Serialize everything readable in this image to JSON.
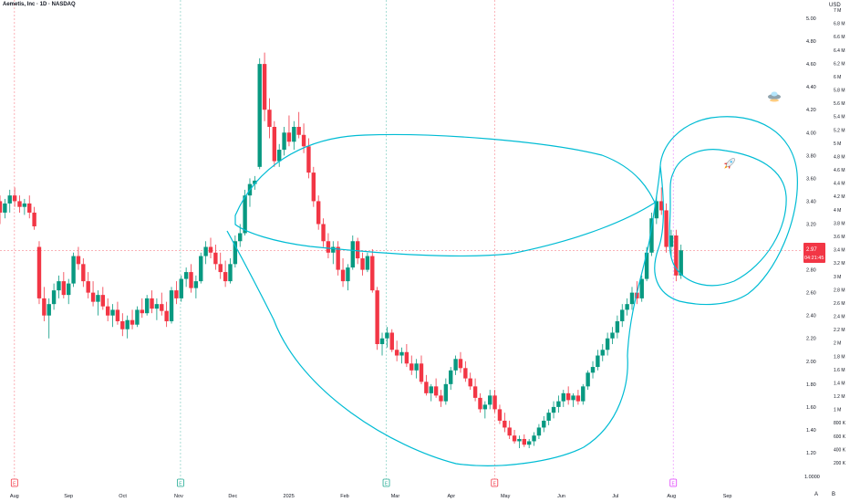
{
  "header": {
    "symbol_label": "Aemetis, Inc · 1D · NASDAQ",
    "currency": "USD"
  },
  "price_badge": {
    "price": "2.97",
    "countdown": "04:21:45",
    "color": "#f23645"
  },
  "bottom_corner": {
    "a_label": "A",
    "b_label": "B"
  },
  "chart_data": {
    "type": "candlestick",
    "price_axis": {
      "ticks": [
        "5.00",
        "4.80",
        "4.60",
        "4.40",
        "4.20",
        "4.00",
        "3.80",
        "3.60",
        "3.40",
        "3.20",
        "3.00",
        "2.80",
        "2.60",
        "2.40",
        "2.20",
        "2.00",
        "1.80",
        "1.60",
        "1.40",
        "1.20"
      ],
      "bottom_tick": "1.0000",
      "range": [
        1.0,
        5.1
      ]
    },
    "volume_axis": {
      "ticks": [
        "7 M",
        "6.8 M",
        "6.6 M",
        "6.4 M",
        "6.2 M",
        "6 M",
        "5.8 M",
        "5.6 M",
        "5.4 M",
        "5.2 M",
        "5 M",
        "4.8 M",
        "4.6 M",
        "4.4 M",
        "4.2 M",
        "4 M",
        "3.8 M",
        "3.6 M",
        "3.4 M",
        "3.2 M",
        "3 M",
        "2.8 M",
        "2.6 M",
        "2.4 M",
        "2.2 M",
        "2 M",
        "1.8 M",
        "1.6 M",
        "1.4 M",
        "1.2 M",
        "1 M",
        "800 K",
        "600 K",
        "400 K",
        "200 K"
      ]
    },
    "time_axis": {
      "labels": [
        {
          "label": "Aug",
          "day": 0
        },
        {
          "label": "Sep",
          "day": 30
        },
        {
          "label": "Oct",
          "day": 60
        },
        {
          "label": "Nov",
          "day": 91
        },
        {
          "label": "Dec",
          "day": 121
        },
        {
          "label": "2025",
          "day": 152
        },
        {
          "label": "Feb",
          "day": 183
        },
        {
          "label": "Mar",
          "day": 211
        },
        {
          "label": "Apr",
          "day": 242
        },
        {
          "label": "May",
          "day": 272
        },
        {
          "label": "Jun",
          "day": 303
        },
        {
          "label": "Jul",
          "day": 333
        },
        {
          "label": "Aug",
          "day": 364
        },
        {
          "label": "Sep",
          "day": 395
        }
      ],
      "range_days": [
        -8,
        424
      ]
    },
    "event_markers": [
      {
        "day": 0,
        "label": "E",
        "color": "#f23645"
      },
      {
        "day": 92,
        "label": "E",
        "color": "#22ab94"
      },
      {
        "day": 206,
        "label": "E",
        "color": "#22ab94"
      },
      {
        "day": 266,
        "label": "E",
        "color": "#f23645"
      },
      {
        "day": 365,
        "label": "E",
        "color": "#e040fb"
      }
    ],
    "up_color": "#089981",
    "down_color": "#f23645",
    "current_price": 2.97,
    "start_day": -8,
    "candles": [
      [
        3.4,
        3.45,
        3.2,
        3.3
      ],
      [
        3.3,
        3.42,
        3.25,
        3.38
      ],
      [
        3.38,
        3.5,
        3.3,
        3.45
      ],
      [
        3.45,
        3.52,
        3.35,
        3.4
      ],
      [
        3.4,
        3.45,
        3.3,
        3.35
      ],
      [
        3.35,
        3.42,
        3.28,
        3.38
      ],
      [
        3.38,
        3.45,
        3.25,
        3.3
      ],
      [
        3.3,
        3.35,
        3.15,
        3.18
      ],
      [
        3.0,
        3.05,
        2.5,
        2.55
      ],
      [
        2.55,
        2.65,
        2.35,
        2.4
      ],
      [
        2.4,
        2.55,
        2.2,
        2.5
      ],
      [
        2.5,
        2.68,
        2.45,
        2.62
      ],
      [
        2.62,
        2.75,
        2.55,
        2.7
      ],
      [
        2.7,
        2.78,
        2.55,
        2.58
      ],
      [
        2.58,
        2.72,
        2.5,
        2.68
      ],
      [
        2.68,
        2.95,
        2.65,
        2.92
      ],
      [
        2.92,
        3.0,
        2.8,
        2.85
      ],
      [
        2.85,
        2.9,
        2.65,
        2.7
      ],
      [
        2.7,
        2.78,
        2.55,
        2.6
      ],
      [
        2.6,
        2.7,
        2.48,
        2.52
      ],
      [
        2.52,
        2.62,
        2.4,
        2.58
      ],
      [
        2.58,
        2.65,
        2.45,
        2.48
      ],
      [
        2.48,
        2.55,
        2.35,
        2.4
      ],
      [
        2.4,
        2.5,
        2.3,
        2.45
      ],
      [
        2.45,
        2.52,
        2.32,
        2.35
      ],
      [
        2.35,
        2.42,
        2.22,
        2.28
      ],
      [
        2.28,
        2.4,
        2.2,
        2.36
      ],
      [
        2.36,
        2.45,
        2.28,
        2.32
      ],
      [
        2.32,
        2.48,
        2.3,
        2.45
      ],
      [
        2.45,
        2.55,
        2.38,
        2.42
      ],
      [
        2.42,
        2.58,
        2.4,
        2.55
      ],
      [
        2.55,
        2.62,
        2.42,
        2.46
      ],
      [
        2.46,
        2.55,
        2.36,
        2.5
      ],
      [
        2.5,
        2.6,
        2.4,
        2.44
      ],
      [
        2.44,
        2.52,
        2.3,
        2.35
      ],
      [
        2.35,
        2.65,
        2.33,
        2.62
      ],
      [
        2.62,
        2.7,
        2.5,
        2.55
      ],
      [
        2.55,
        2.75,
        2.52,
        2.72
      ],
      [
        2.72,
        2.82,
        2.65,
        2.78
      ],
      [
        2.78,
        2.85,
        2.6,
        2.64
      ],
      [
        2.64,
        2.75,
        2.55,
        2.7
      ],
      [
        2.7,
        2.95,
        2.68,
        2.92
      ],
      [
        2.92,
        3.05,
        2.85,
        3.0
      ],
      [
        3.0,
        3.08,
        2.9,
        2.95
      ],
      [
        2.95,
        3.02,
        2.8,
        2.85
      ],
      [
        2.85,
        2.95,
        2.72,
        2.78
      ],
      [
        2.78,
        2.88,
        2.65,
        2.7
      ],
      [
        2.7,
        2.9,
        2.68,
        2.85
      ],
      [
        2.85,
        3.1,
        2.82,
        3.05
      ],
      [
        3.05,
        3.2,
        3.0,
        3.12
      ],
      [
        3.12,
        3.5,
        3.1,
        3.45
      ],
      [
        3.45,
        3.6,
        3.35,
        3.55
      ],
      [
        3.55,
        3.62,
        3.5,
        3.58
      ],
      [
        3.7,
        4.65,
        3.68,
        4.6
      ],
      [
        4.6,
        4.7,
        4.1,
        4.2
      ],
      [
        4.2,
        4.3,
        3.95,
        4.05
      ],
      [
        4.05,
        4.1,
        3.7,
        3.75
      ],
      [
        3.75,
        3.9,
        3.7,
        3.85
      ],
      [
        3.85,
        4.05,
        3.8,
        4.0
      ],
      [
        4.0,
        4.15,
        3.88,
        3.92
      ],
      [
        3.92,
        4.1,
        3.85,
        4.05
      ],
      [
        4.05,
        4.18,
        3.95,
        3.98
      ],
      [
        3.98,
        4.08,
        3.82,
        3.88
      ],
      [
        3.88,
        3.95,
        3.6,
        3.65
      ],
      [
        3.65,
        3.7,
        3.35,
        3.4
      ],
      [
        3.4,
        3.45,
        3.15,
        3.2
      ],
      [
        3.2,
        3.25,
        3.0,
        3.05
      ],
      [
        3.05,
        3.12,
        2.9,
        2.95
      ],
      [
        2.95,
        3.05,
        2.85,
        3.0
      ],
      [
        3.0,
        3.05,
        2.75,
        2.8
      ],
      [
        2.8,
        2.9,
        2.65,
        2.7
      ],
      [
        2.7,
        2.85,
        2.62,
        2.82
      ],
      [
        2.82,
        3.1,
        2.8,
        3.05
      ],
      [
        3.05,
        3.08,
        2.85,
        2.9
      ],
      [
        2.9,
        2.95,
        2.75,
        2.8
      ],
      [
        2.8,
        2.95,
        2.78,
        2.92
      ],
      [
        2.92,
        2.98,
        2.6,
        2.62
      ],
      [
        2.62,
        2.65,
        2.1,
        2.15
      ],
      [
        2.15,
        2.25,
        2.05,
        2.2
      ],
      [
        2.2,
        2.3,
        2.12,
        2.25
      ],
      [
        2.25,
        2.28,
        2.08,
        2.1
      ],
      [
        2.1,
        2.18,
        2.0,
        2.05
      ],
      [
        2.05,
        2.12,
        1.98,
        2.08
      ],
      [
        2.08,
        2.15,
        1.95,
        1.98
      ],
      [
        1.98,
        2.05,
        1.88,
        1.92
      ],
      [
        1.92,
        2.02,
        1.85,
        1.98
      ],
      [
        1.98,
        2.05,
        1.8,
        1.82
      ],
      [
        1.82,
        1.88,
        1.7,
        1.72
      ],
      [
        1.72,
        1.8,
        1.65,
        1.78
      ],
      [
        1.78,
        1.85,
        1.68,
        1.7
      ],
      [
        1.7,
        1.75,
        1.6,
        1.65
      ],
      [
        1.65,
        1.85,
        1.62,
        1.8
      ],
      [
        1.8,
        1.95,
        1.75,
        1.92
      ],
      [
        1.92,
        2.05,
        1.88,
        2.02
      ],
      [
        2.02,
        2.08,
        1.9,
        1.94
      ],
      [
        1.94,
        2.0,
        1.82,
        1.85
      ],
      [
        1.85,
        1.9,
        1.75,
        1.78
      ],
      [
        1.78,
        1.85,
        1.65,
        1.68
      ],
      [
        1.68,
        1.72,
        1.55,
        1.58
      ],
      [
        1.58,
        1.65,
        1.5,
        1.62
      ],
      [
        1.62,
        1.75,
        1.58,
        1.7
      ],
      [
        1.7,
        1.75,
        1.55,
        1.58
      ],
      [
        1.58,
        1.62,
        1.45,
        1.48
      ],
      [
        1.48,
        1.55,
        1.38,
        1.42
      ],
      [
        1.42,
        1.48,
        1.32,
        1.35
      ],
      [
        1.35,
        1.4,
        1.28,
        1.3
      ],
      [
        1.3,
        1.35,
        1.24,
        1.32
      ],
      [
        1.32,
        1.36,
        1.25,
        1.27
      ],
      [
        1.27,
        1.32,
        1.24,
        1.3
      ],
      [
        1.3,
        1.38,
        1.26,
        1.35
      ],
      [
        1.35,
        1.45,
        1.32,
        1.42
      ],
      [
        1.42,
        1.52,
        1.38,
        1.48
      ],
      [
        1.48,
        1.58,
        1.44,
        1.55
      ],
      [
        1.55,
        1.65,
        1.5,
        1.6
      ],
      [
        1.6,
        1.7,
        1.55,
        1.65
      ],
      [
        1.65,
        1.75,
        1.6,
        1.72
      ],
      [
        1.72,
        1.78,
        1.62,
        1.66
      ],
      [
        1.66,
        1.72,
        1.6,
        1.7
      ],
      [
        1.7,
        1.75,
        1.62,
        1.65
      ],
      [
        1.65,
        1.8,
        1.62,
        1.78
      ],
      [
        1.78,
        1.92,
        1.75,
        1.9
      ],
      [
        1.9,
        2.0,
        1.85,
        1.95
      ],
      [
        1.95,
        2.1,
        1.92,
        2.05
      ],
      [
        2.05,
        2.15,
        2.0,
        2.1
      ],
      [
        2.1,
        2.25,
        2.05,
        2.2
      ],
      [
        2.2,
        2.3,
        2.15,
        2.25
      ],
      [
        2.25,
        2.4,
        2.2,
        2.35
      ],
      [
        2.35,
        2.5,
        2.3,
        2.45
      ],
      [
        2.45,
        2.55,
        2.4,
        2.5
      ],
      [
        2.5,
        2.65,
        2.45,
        2.6
      ],
      [
        2.6,
        2.7,
        2.5,
        2.55
      ],
      [
        2.55,
        2.75,
        2.52,
        2.72
      ],
      [
        2.72,
        3.0,
        2.7,
        2.95
      ],
      [
        2.95,
        3.3,
        2.92,
        3.25
      ],
      [
        3.25,
        3.45,
        3.2,
        3.4
      ],
      [
        3.4,
        3.52,
        3.28,
        3.32
      ],
      [
        3.32,
        3.38,
        2.95,
        3.0
      ],
      [
        3.0,
        3.15,
        2.9,
        3.1
      ],
      [
        3.1,
        3.15,
        2.7,
        2.75
      ],
      [
        2.75,
        3.02,
        2.72,
        2.97
      ]
    ]
  }
}
